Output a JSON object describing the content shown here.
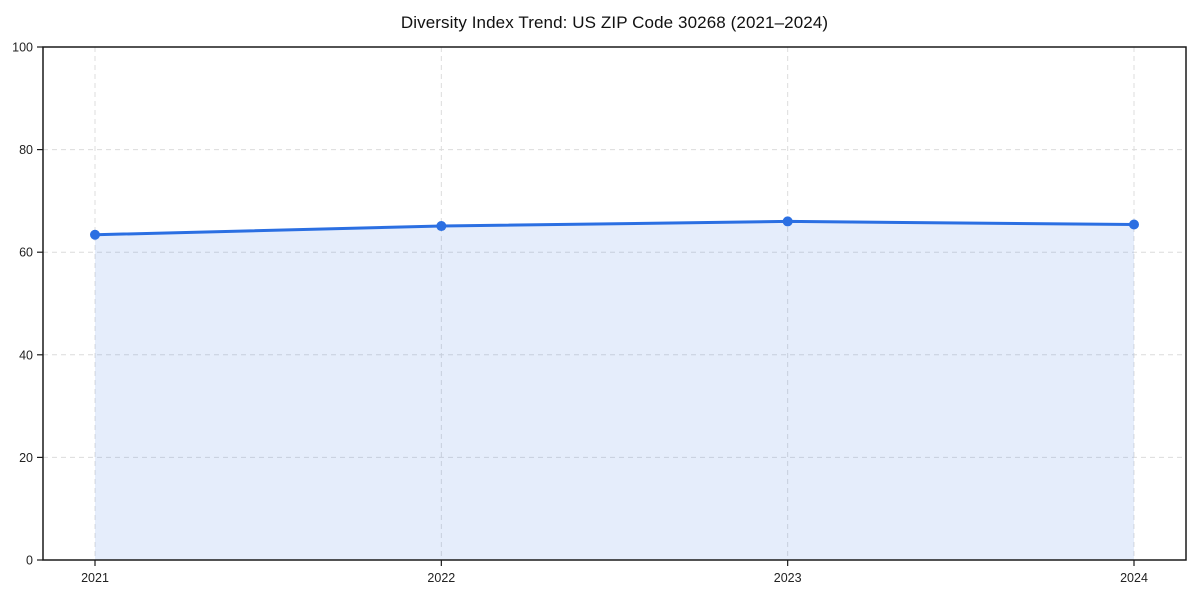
{
  "chart_data": {
    "type": "area",
    "title": "Diversity Index Trend: US ZIP Code 30268 (2021–2024)",
    "x": [
      2021,
      2022,
      2023,
      2024
    ],
    "series": [
      {
        "name": "Diversity Index",
        "values": [
          63.4,
          65.1,
          66.0,
          65.4
        ]
      }
    ],
    "xlabel": "",
    "ylabel": "",
    "ylim": [
      0,
      100
    ],
    "yticks": [
      0,
      20,
      40,
      60,
      80,
      100
    ],
    "grid": true,
    "grid_style": "dashed",
    "legend": "none",
    "colors": {
      "line": "#2b6fe2",
      "marker": "#2b6fe2",
      "fill": "#2b6fe2",
      "fill_opacity": 0.12,
      "grid": "#dcdcdc",
      "spine": "#1a1a1a",
      "background": "#ffffff",
      "tick_label": "#222222",
      "title": "#111111"
    }
  }
}
